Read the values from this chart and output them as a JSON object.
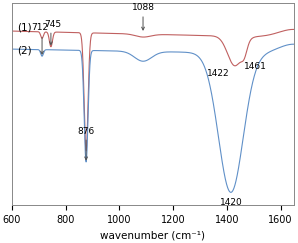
{
  "x_min": 600,
  "x_max": 1650,
  "xlabel": "wavenumber (cm⁻¹)",
  "line1_color": "#c06060",
  "line2_color": "#6090c8",
  "label1": "(1)",
  "label2": "(2)",
  "xticks": [
    600,
    800,
    1000,
    1200,
    1400,
    1600
  ],
  "xtick_labels": [
    "600",
    "800",
    "1000",
    "1200",
    "1400",
    "1600"
  ]
}
